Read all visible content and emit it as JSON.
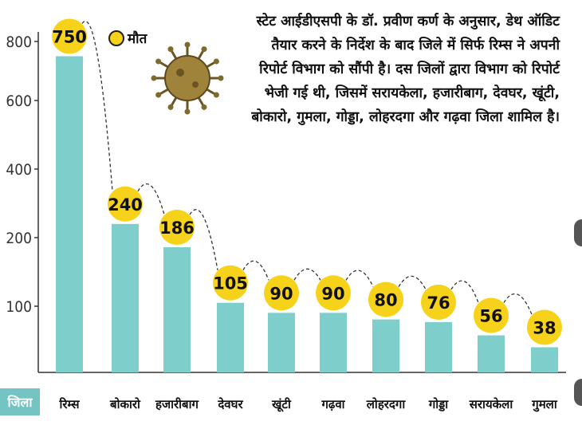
{
  "legend": {
    "label": "मौत",
    "color": "#f7d21a"
  },
  "annotation": "स्टेट आईडीएसपी के डॉ. प्रवीण कर्ण के अनुसार, डेथ ऑडिट तैयार करने के निर्देश के बाद जिले में सिर्फ रिम्स ने अपनी रिपोर्ट विभाग को सौंपी है। दस जिलों द्वारा विभाग को रिपोर्ट भेजी गई थी, जिसमें सरायकेला, हजारीबाग, देवघर, खूंटी, बोकारो, गुमला, गोड्डा, लोहरदगा और गढ़वा जिला शामिल है।",
  "axis_badge": "जिला",
  "colors": {
    "bar": "#7ecfcc",
    "bubble": "#f7d21a",
    "axis": "#333333"
  },
  "chart_data": {
    "type": "bar",
    "categories": [
      "रिम्स",
      "बोकारो",
      "हजारीबाग",
      "देवघर",
      "खूंटी",
      "गढ़वा",
      "लोहरदगा",
      "गोड्डा",
      "सरायकेला",
      "गुमला"
    ],
    "values": [
      750,
      240,
      186,
      105,
      90,
      90,
      80,
      76,
      56,
      38
    ],
    "y_ticks": [
      "100",
      "200",
      "400",
      "600",
      "800"
    ],
    "series": [
      {
        "name": "मौत",
        "values": [
          750,
          240,
          186,
          105,
          90,
          90,
          80,
          76,
          56,
          38
        ]
      }
    ],
    "y_axis_note": "non-linear scale: tick labels 100, 200, 400, 600, 800 equally spaced",
    "grid": false
  }
}
